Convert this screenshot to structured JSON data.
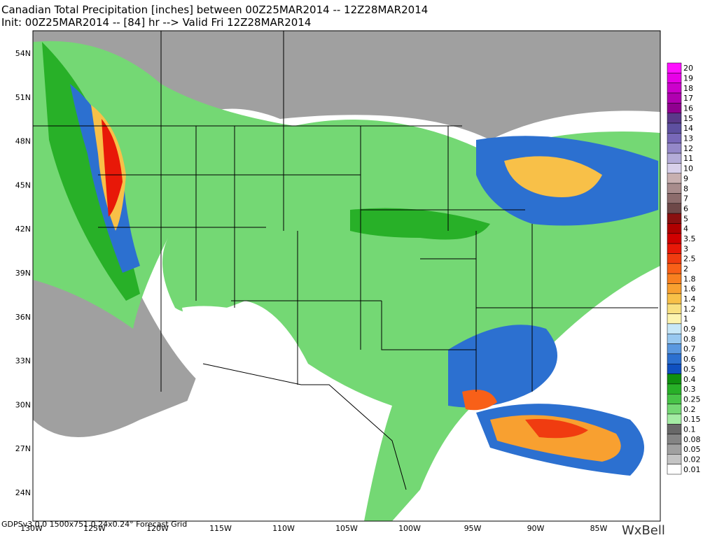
{
  "header": {
    "title": "Canadian Total Precipitation [inches] between 00Z25MAR2014 -- 12Z28MAR2014",
    "subtitle": "Init: 00Z25MAR2014 -- [84] hr --> Valid Fri 12Z28MAR2014"
  },
  "lat_labels": [
    "54N",
    "51N",
    "48N",
    "45N",
    "42N",
    "39N",
    "36N",
    "33N",
    "30N",
    "27N",
    "24N"
  ],
  "lon_labels": [
    "130W",
    "125W",
    "120W",
    "115W",
    "110W",
    "105W",
    "100W",
    "95W",
    "90W",
    "85W"
  ],
  "footer": "GDPSv3.0.0 1500x751 0.24x0.24° Forecast Grid",
  "logo": "WxBell",
  "colorbar": [
    {
      "label": "20",
      "color": "#ff10ff"
    },
    {
      "label": "19",
      "color": "#e800e8"
    },
    {
      "label": "18",
      "color": "#cc00cc"
    },
    {
      "label": "17",
      "color": "#b000b0"
    },
    {
      "label": "16",
      "color": "#900090"
    },
    {
      "label": "15",
      "color": "#5a3a8a"
    },
    {
      "label": "14",
      "color": "#5e50a0"
    },
    {
      "label": "13",
      "color": "#7868b8"
    },
    {
      "label": "12",
      "color": "#9488c8"
    },
    {
      "label": "11",
      "color": "#b4acd8"
    },
    {
      "label": "10",
      "color": "#d8d0ea"
    },
    {
      "label": "9",
      "color": "#c8b0b0"
    },
    {
      "label": "8",
      "color": "#a88c8c"
    },
    {
      "label": "7",
      "color": "#8c6c6c"
    },
    {
      "label": "6",
      "color": "#6e4848"
    },
    {
      "label": "5",
      "color": "#8a1010"
    },
    {
      "label": "4",
      "color": "#b00000"
    },
    {
      "label": "3.5",
      "color": "#d00000"
    },
    {
      "label": "3",
      "color": "#e81808"
    },
    {
      "label": "2.5",
      "color": "#f03c10"
    },
    {
      "label": "2",
      "color": "#f86018"
    },
    {
      "label": "1.8",
      "color": "#f88020"
    },
    {
      "label": "1.6",
      "color": "#f8a030"
    },
    {
      "label": "1.4",
      "color": "#f8c048"
    },
    {
      "label": "1.2",
      "color": "#f8e080"
    },
    {
      "label": "1",
      "color": "#fcf4b0"
    },
    {
      "label": "0.9",
      "color": "#c8e8f8"
    },
    {
      "label": "0.8",
      "color": "#98c8f0"
    },
    {
      "label": "0.7",
      "color": "#5a98e0"
    },
    {
      "label": "0.6",
      "color": "#2c70d0"
    },
    {
      "label": "0.5",
      "color": "#1050c0"
    },
    {
      "label": "0.4",
      "color": "#109010"
    },
    {
      "label": "0.3",
      "color": "#28b028"
    },
    {
      "label": "0.25",
      "color": "#48c448"
    },
    {
      "label": "0.2",
      "color": "#74d874"
    },
    {
      "label": "0.15",
      "color": "#a4eca4"
    },
    {
      "label": "0.1",
      "color": "#686868"
    },
    {
      "label": "0.08",
      "color": "#848484"
    },
    {
      "label": "0.05",
      "color": "#a0a0a0"
    },
    {
      "label": "0.02",
      "color": "#c4c4c4"
    },
    {
      "label": "0.01",
      "color": "#ffffff"
    }
  ]
}
